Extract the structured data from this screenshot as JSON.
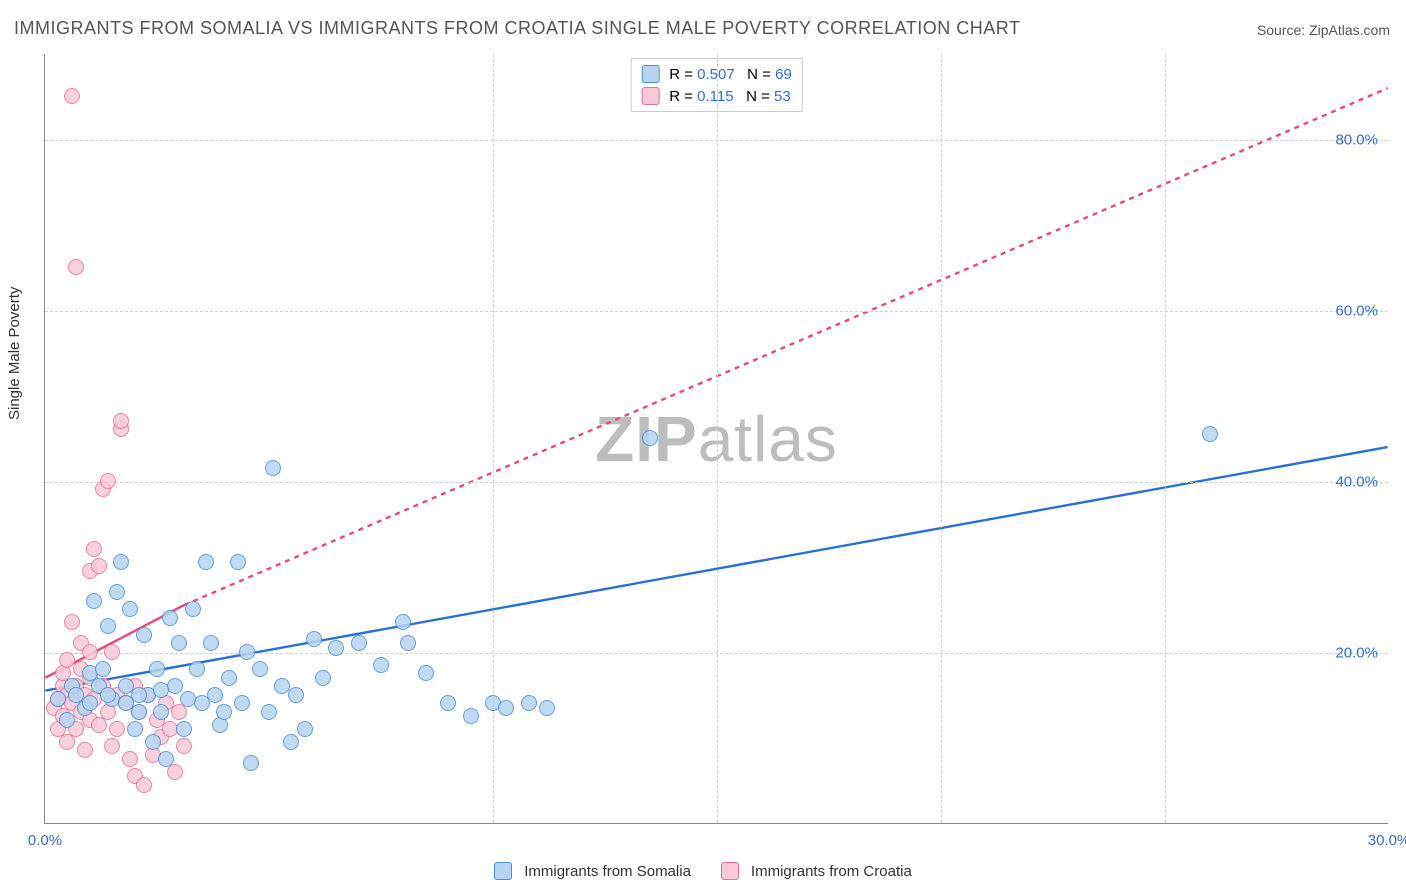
{
  "title": "IMMIGRANTS FROM SOMALIA VS IMMIGRANTS FROM CROATIA SINGLE MALE POVERTY CORRELATION CHART",
  "source": "Source: ZipAtlas.com",
  "ylabel": "Single Male Poverty",
  "watermark": {
    "bold": "ZIP",
    "rest": "atlas"
  },
  "chart": {
    "type": "scatter",
    "xlim": [
      0,
      30
    ],
    "ylim": [
      0,
      90
    ],
    "xticks": [
      0,
      30
    ],
    "yticks": [
      20,
      40,
      60,
      80
    ],
    "xtick_suffix": ".0%",
    "ytick_suffix": ".0%",
    "x_gridlines": [
      10,
      15,
      20,
      25
    ],
    "y_gridlines": [
      20,
      40,
      60,
      80
    ],
    "grid_color": "#d6d6d6",
    "axis_color": "#888888",
    "background_color": "#ffffff",
    "tick_color_x": "#2f6fd0",
    "tick_color_y": "#2f6fd0",
    "marker_radius": 8,
    "marker_border_width": 1.2,
    "series": [
      {
        "name": "Immigrants from Somalia",
        "fill": "#b6d4f0",
        "stroke": "#4a8fd6",
        "line_color": "#2a6fd6",
        "line_width": 2.4,
        "r_label": "R =",
        "r_value": "0.507",
        "n_label": "N =",
        "n_value": "69",
        "regression": {
          "x1": 0,
          "y1": 15.5,
          "x2": 30,
          "y2": 44,
          "dash": "none"
        },
        "extrap": null,
        "points": [
          [
            0.3,
            14.5
          ],
          [
            0.5,
            12
          ],
          [
            0.6,
            16
          ],
          [
            0.7,
            15
          ],
          [
            0.9,
            13.5
          ],
          [
            1.0,
            17.5
          ],
          [
            1.1,
            26
          ],
          [
            1.2,
            16
          ],
          [
            1.3,
            18
          ],
          [
            1.4,
            23
          ],
          [
            1.5,
            14.5
          ],
          [
            1.6,
            27
          ],
          [
            1.7,
            30.5
          ],
          [
            1.8,
            16
          ],
          [
            1.9,
            25
          ],
          [
            2.0,
            11
          ],
          [
            2.1,
            13
          ],
          [
            2.2,
            22
          ],
          [
            2.3,
            15
          ],
          [
            2.4,
            9.5
          ],
          [
            2.5,
            18
          ],
          [
            2.6,
            13
          ],
          [
            2.7,
            7.5
          ],
          [
            2.8,
            24
          ],
          [
            2.9,
            16
          ],
          [
            3.0,
            21
          ],
          [
            3.1,
            11
          ],
          [
            3.3,
            25
          ],
          [
            3.4,
            18
          ],
          [
            3.5,
            14
          ],
          [
            3.6,
            30.5
          ],
          [
            3.7,
            21
          ],
          [
            3.9,
            11.5
          ],
          [
            4.0,
            13
          ],
          [
            4.1,
            17
          ],
          [
            4.3,
            30.5
          ],
          [
            4.5,
            20
          ],
          [
            4.6,
            7
          ],
          [
            4.8,
            18
          ],
          [
            5.0,
            13
          ],
          [
            5.1,
            41.5
          ],
          [
            5.3,
            16
          ],
          [
            5.5,
            9.5
          ],
          [
            5.8,
            11
          ],
          [
            6.0,
            21.5
          ],
          [
            6.2,
            17
          ],
          [
            6.5,
            20.5
          ],
          [
            7.0,
            21
          ],
          [
            7.5,
            18.5
          ],
          [
            8.0,
            23.5
          ],
          [
            8.1,
            21
          ],
          [
            8.5,
            17.5
          ],
          [
            9.0,
            14
          ],
          [
            9.5,
            12.5
          ],
          [
            10.0,
            14
          ],
          [
            10.3,
            13.5
          ],
          [
            10.8,
            14
          ],
          [
            11.2,
            13.5
          ],
          [
            13.5,
            45
          ],
          [
            26.0,
            45.5
          ],
          [
            1.0,
            14
          ],
          [
            1.4,
            15
          ],
          [
            1.8,
            14
          ],
          [
            2.1,
            15
          ],
          [
            2.6,
            15.5
          ],
          [
            3.2,
            14.5
          ],
          [
            3.8,
            15
          ],
          [
            4.4,
            14
          ],
          [
            5.6,
            15
          ]
        ]
      },
      {
        "name": "Immigrants from Croatia",
        "fill": "#f8c9d7",
        "stroke": "#e56f9a",
        "line_color": "#e24a80",
        "line_width": 2.4,
        "r_label": "R =",
        "r_value": "0.115",
        "n_label": "N =",
        "n_value": "53",
        "regression": {
          "x1": 0,
          "y1": 17,
          "x2": 3.1,
          "y2": 25.5,
          "dash": "none"
        },
        "extrap": {
          "x1": 3.1,
          "y1": 25.5,
          "x2": 30,
          "y2": 86,
          "dash": "5,5"
        },
        "points": [
          [
            0.2,
            13.5
          ],
          [
            0.3,
            14.5
          ],
          [
            0.3,
            11
          ],
          [
            0.4,
            16
          ],
          [
            0.4,
            12.5
          ],
          [
            0.5,
            15
          ],
          [
            0.5,
            9.5
          ],
          [
            0.6,
            23.5
          ],
          [
            0.6,
            14
          ],
          [
            0.7,
            16
          ],
          [
            0.7,
            11
          ],
          [
            0.8,
            18
          ],
          [
            0.8,
            13
          ],
          [
            0.9,
            15
          ],
          [
            0.9,
            8.5
          ],
          [
            1.0,
            29.5
          ],
          [
            1.0,
            17
          ],
          [
            1.0,
            12
          ],
          [
            1.1,
            32
          ],
          [
            1.1,
            14.5
          ],
          [
            1.2,
            30
          ],
          [
            1.2,
            11.5
          ],
          [
            1.3,
            39
          ],
          [
            1.3,
            16
          ],
          [
            1.4,
            40
          ],
          [
            1.4,
            13
          ],
          [
            1.5,
            20
          ],
          [
            1.5,
            9
          ],
          [
            1.6,
            15
          ],
          [
            1.6,
            11
          ],
          [
            1.7,
            46
          ],
          [
            1.7,
            47
          ],
          [
            1.8,
            14
          ],
          [
            1.9,
            7.5
          ],
          [
            2.0,
            16
          ],
          [
            2.0,
            5.5
          ],
          [
            2.1,
            13
          ],
          [
            2.2,
            4.5
          ],
          [
            2.3,
            15
          ],
          [
            2.4,
            8
          ],
          [
            2.5,
            12
          ],
          [
            2.6,
            10
          ],
          [
            2.7,
            14
          ],
          [
            2.8,
            11
          ],
          [
            2.9,
            6
          ],
          [
            3.0,
            13
          ],
          [
            3.1,
            9
          ],
          [
            0.6,
            85
          ],
          [
            0.7,
            65
          ],
          [
            0.4,
            17.5
          ],
          [
            0.5,
            19
          ],
          [
            0.8,
            21
          ],
          [
            1.0,
            20
          ]
        ]
      }
    ],
    "legend_top": {
      "border_color": "#cccccc",
      "value_color": "#2f6fd0"
    },
    "legend_bottom_labels": [
      "Immigrants from Somalia",
      "Immigrants from Croatia"
    ]
  }
}
